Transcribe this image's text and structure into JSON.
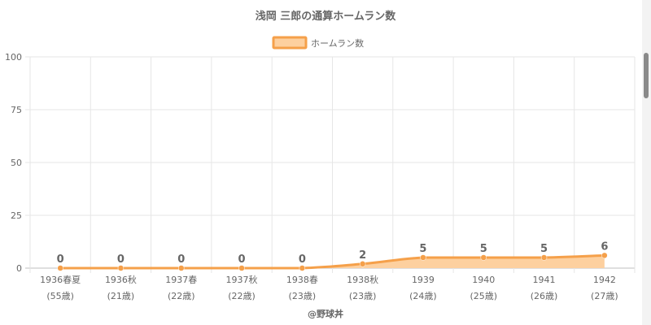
{
  "chart_data": {
    "type": "area",
    "title": "浅岡 三郎の通算ホームラン数",
    "legend": {
      "label": "ホームラン数",
      "position": "top"
    },
    "categories": [
      "1936春夏",
      "1936秋",
      "1937春",
      "1937秋",
      "1938春",
      "1938秋",
      "1939",
      "1940",
      "1941",
      "1942"
    ],
    "sublabels": [
      "(55歳)",
      "(21歳)",
      "(22歳)",
      "(22歳)",
      "(23歳)",
      "(23歳)",
      "(24歳)",
      "(25歳)",
      "(26歳)",
      "(27歳)"
    ],
    "series": [
      {
        "name": "ホームラン数",
        "values": [
          0,
          0,
          0,
          0,
          0,
          2,
          5,
          5,
          5,
          6
        ]
      }
    ],
    "ylim": [
      0,
      100
    ],
    "yticks": [
      0,
      25,
      50,
      75,
      100
    ],
    "grid": true,
    "colors": {
      "line": "#f5a04a",
      "fill": "#fdd09f",
      "point": "#f5a04a",
      "grid": "#e6e6e6",
      "axis": "#bfbfbf"
    }
  },
  "credit": "@野球丼"
}
